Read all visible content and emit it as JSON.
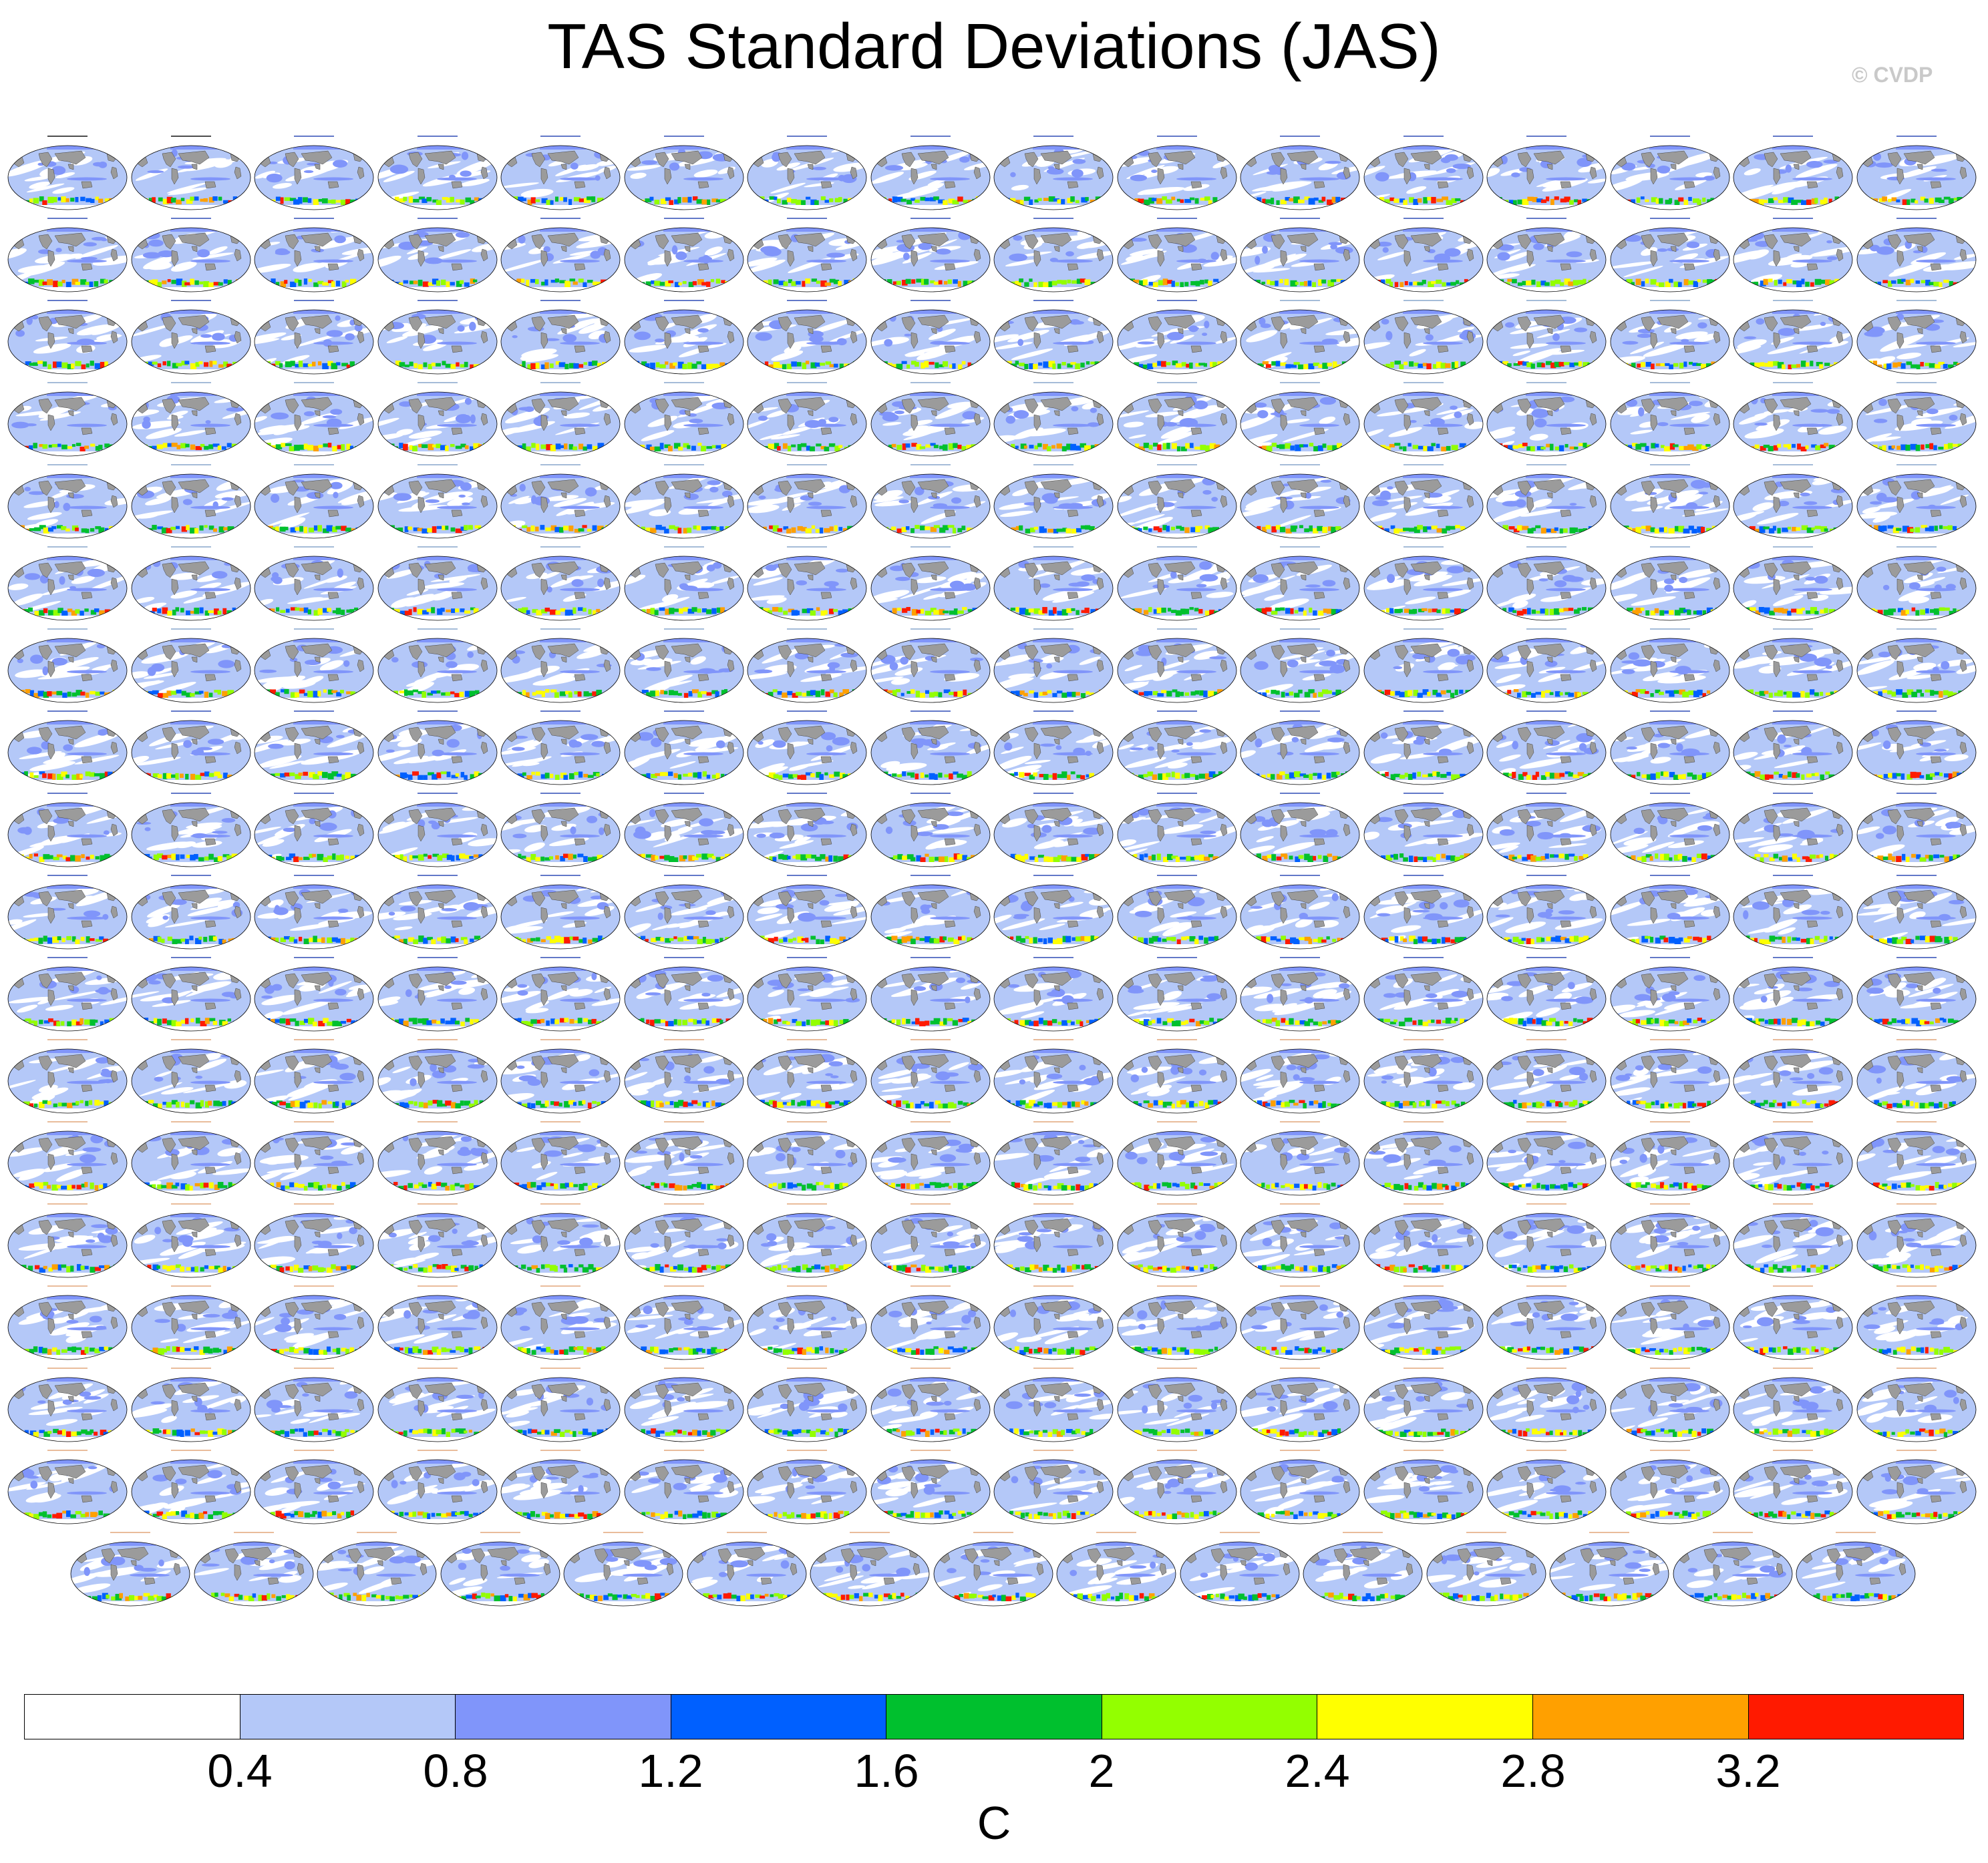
{
  "title": "TAS Standard Deviations (JAS)",
  "watermark": "© CVDP",
  "colors": {
    "ocean_base": "#ffffff",
    "land": "#9b9b9b",
    "c1": "#b4c8f8",
    "c2": "#8095fa",
    "c3": "#0060ff",
    "c4": "#00c02e",
    "c5": "#93ff00",
    "c6": "#ffff00",
    "c7": "#ffa000",
    "c8": "#ff1a00",
    "title_obs": "#000000",
    "title_access": "#1f3fb0",
    "title_canesm": "#7fa0c8",
    "title_cesm1": "#1f3fb0",
    "title_cesm2": "#e0a070"
  },
  "colorbar": {
    "colors": [
      "#ffffff",
      "#b4c8f8",
      "#8095fa",
      "#0060ff",
      "#00c02e",
      "#93ff00",
      "#ffff00",
      "#ffa000",
      "#ff1a00"
    ],
    "labels": [
      "0.4",
      "0.8",
      "1.2",
      "1.6",
      "2",
      "2.4",
      "2.8",
      "3.2"
    ],
    "units": "C"
  }
}
